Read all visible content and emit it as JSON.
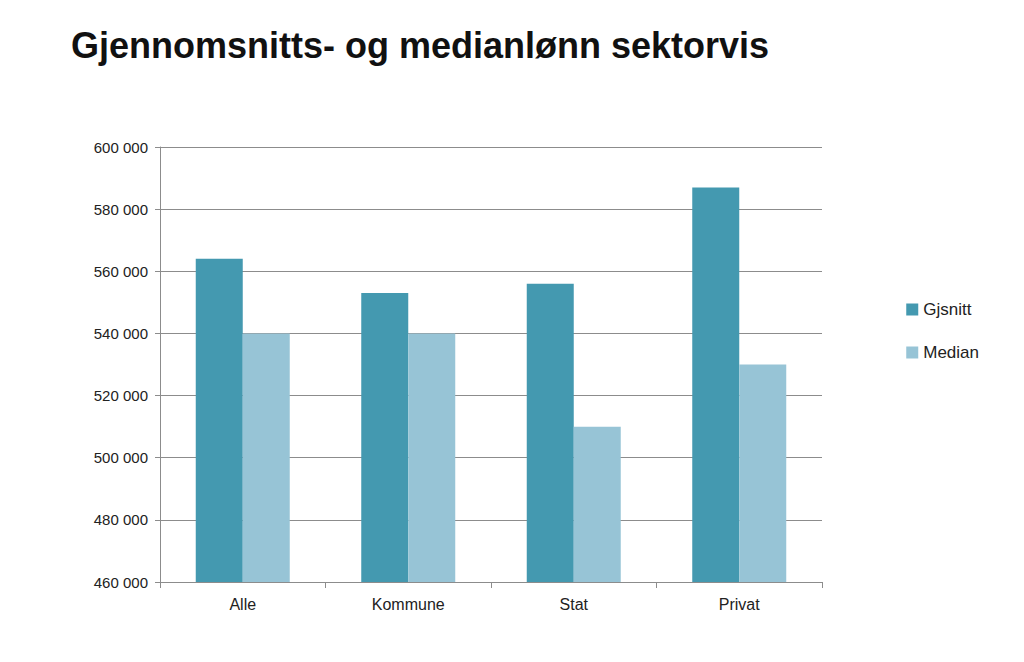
{
  "chart_data": {
    "type": "bar",
    "title": "Gjennomsnitts- og medianlønn sektorvis",
    "categories": [
      "Alle",
      "Kommune",
      "Stat",
      "Privat"
    ],
    "series": [
      {
        "name": "Gjsnitt",
        "color": "#4499b0",
        "values": [
          564000,
          553000,
          556000,
          587000
        ]
      },
      {
        "name": "Median",
        "color": "#97c4d6",
        "values": [
          540000,
          540000,
          510000,
          530000
        ]
      }
    ],
    "ylim": [
      460000,
      600000
    ],
    "yticks": [
      {
        "value": 460000,
        "label": "460 000"
      },
      {
        "value": 480000,
        "label": "480 000"
      },
      {
        "value": 500000,
        "label": "500 000"
      },
      {
        "value": 520000,
        "label": "520 000"
      },
      {
        "value": 540000,
        "label": "540 000"
      },
      {
        "value": 560000,
        "label": "560 000"
      },
      {
        "value": 580000,
        "label": "580 000"
      },
      {
        "value": 600000,
        "label": "600 000"
      }
    ],
    "grid": true,
    "legend": "right"
  }
}
